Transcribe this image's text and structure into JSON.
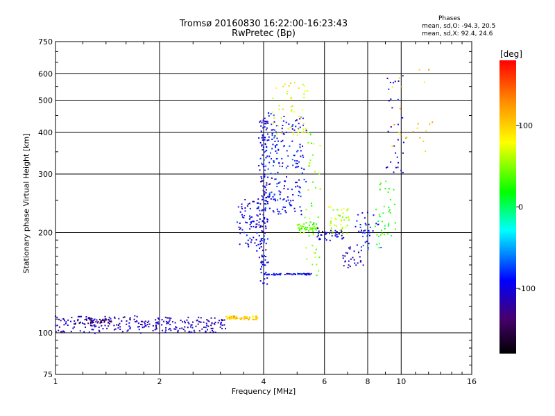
{
  "chart_data": {
    "type": "scatter",
    "title": "Tromsø 20160830 16:22:00-16:23:43",
    "subtitle": "RwPretec (Bp)",
    "xlabel": "Frequency [MHz]",
    "ylabel": "Stationary phase Virtual Height [km]",
    "x_scale": "log",
    "y_scale": "log",
    "xlim": [
      1,
      16
    ],
    "ylim": [
      75,
      750
    ],
    "x_ticks": [
      1,
      2,
      4,
      6,
      8,
      10,
      16
    ],
    "y_ticks": [
      75,
      100,
      200,
      300,
      400,
      500,
      600,
      750
    ],
    "grid": true,
    "colorbar": {
      "label": "[deg]",
      "range": [
        -180,
        180
      ],
      "ticks": [
        -100,
        0,
        100
      ]
    },
    "stats": {
      "heading": "Phases",
      "o_mode": "mean, sd,O: -94.3, 20.5",
      "x_mode": "mean, sd,X:  92.4, 24.6"
    },
    "traces": [
      {
        "f": [
          1.0,
          3.1
        ],
        "h": [
          100,
          112
        ],
        "phase": -110,
        "n": 260,
        "spread": 0.012
      },
      {
        "f": [
          1.15,
          1.45
        ],
        "h": [
          106,
          110
        ],
        "phase": -140,
        "n": 40,
        "spread": 0.02
      },
      {
        "f": [
          3.1,
          3.85
        ],
        "h": [
          110,
          112
        ],
        "phase": 105,
        "n": 60,
        "spread": 0.012
      },
      {
        "f": [
          3.4,
          4.0
        ],
        "h": [
          180,
          250
        ],
        "phase": -100,
        "n": 90,
        "spread": 0.05
      },
      {
        "f": [
          3.9,
          4.1
        ],
        "h": [
          140,
          450
        ],
        "phase": -100,
        "n": 140,
        "spread": 0.02
      },
      {
        "f": [
          4.0,
          5.2
        ],
        "h": [
          230,
          450
        ],
        "phase": -90,
        "n": 200,
        "spread": 0.06
      },
      {
        "f": [
          4.0,
          5.5
        ],
        "h": [
          150,
          150
        ],
        "phase": -95,
        "n": 60,
        "spread": 0.01
      },
      {
        "f": [
          4.3,
          5.5
        ],
        "h": [
          380,
          570
        ],
        "phase": 80,
        "n": 50,
        "spread": 0.05
      },
      {
        "f": [
          5.0,
          5.7
        ],
        "h": [
          200,
          215
        ],
        "phase": 40,
        "n": 50,
        "spread": 0.03
      },
      {
        "f": [
          5.3,
          5.7
        ],
        "h": [
          150,
          420
        ],
        "phase": 50,
        "n": 40,
        "spread": 0.06
      },
      {
        "f": [
          5.7,
          6.8
        ],
        "h": [
          190,
          205
        ],
        "phase": -100,
        "n": 40,
        "spread": 0.015
      },
      {
        "f": [
          6.2,
          7.0
        ],
        "h": [
          200,
          240
        ],
        "phase": 60,
        "n": 40,
        "spread": 0.05
      },
      {
        "f": [
          6.8,
          7.8
        ],
        "h": [
          155,
          180
        ],
        "phase": -110,
        "n": 30,
        "spread": 0.03
      },
      {
        "f": [
          7.5,
          8.5
        ],
        "h": [
          180,
          230
        ],
        "phase": -90,
        "n": 40,
        "spread": 0.06
      },
      {
        "f": [
          8.5,
          9.5
        ],
        "h": [
          180,
          280
        ],
        "phase": 20,
        "n": 40,
        "spread": 0.06
      },
      {
        "f": [
          9.2,
          10.0
        ],
        "h": [
          300,
          600
        ],
        "phase": -105,
        "n": 30,
        "spread": 0.06
      },
      {
        "f": [
          9.5,
          12.5
        ],
        "h": [
          350,
          620
        ],
        "phase": 110,
        "n": 22,
        "spread": 0.08
      }
    ]
  }
}
